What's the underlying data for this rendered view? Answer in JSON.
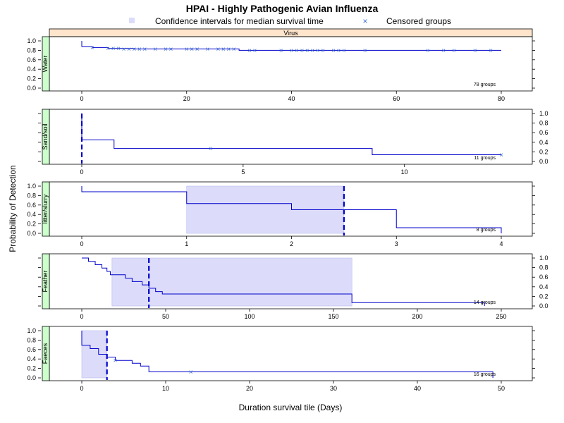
{
  "title": "HPAI - Highly Pathogenic Avian Influenza",
  "legend": {
    "ci_label": "Confidence intervals for median survival time",
    "censored_label": "Censored groups"
  },
  "strip_label": "Virus",
  "ylabel": "Probability of Detection",
  "xlabel": "Duration survival tile (Days)",
  "colors": {
    "line": "#0000cc",
    "marker": "#3a6fd1",
    "ci_fill": "#dcdcfa",
    "strip": "#ffe5cc",
    "panel_strip": "#ccffcc"
  },
  "chart_data": [
    {
      "type": "line",
      "step": true,
      "panel": "Water",
      "groups_label": "78 groups",
      "xlim": [
        0,
        80
      ],
      "xticks": [
        0,
        20,
        40,
        60,
        80
      ],
      "ylim": [
        0,
        1
      ],
      "yticks": [
        "0.0",
        "0.2",
        "0.4",
        "0.6",
        "0.8",
        "1.0"
      ],
      "x": [
        0,
        0,
        2,
        5,
        10,
        30,
        80
      ],
      "y": [
        1,
        0.88,
        0.86,
        0.84,
        0.83,
        0.8,
        0.8
      ],
      "censored": [
        [
          2,
          0.86
        ],
        [
          5,
          0.84
        ],
        [
          6,
          0.84
        ],
        [
          7,
          0.84
        ],
        [
          8,
          0.83
        ],
        [
          9,
          0.83
        ],
        [
          10,
          0.83
        ],
        [
          11,
          0.83
        ],
        [
          12,
          0.83
        ],
        [
          14,
          0.83
        ],
        [
          16,
          0.83
        ],
        [
          17,
          0.83
        ],
        [
          20,
          0.83
        ],
        [
          21,
          0.83
        ],
        [
          22,
          0.83
        ],
        [
          24,
          0.83
        ],
        [
          26,
          0.83
        ],
        [
          27,
          0.83
        ],
        [
          28,
          0.83
        ],
        [
          29,
          0.83
        ],
        [
          32,
          0.8
        ],
        [
          33,
          0.8
        ],
        [
          38,
          0.8
        ],
        [
          40,
          0.8
        ],
        [
          41,
          0.8
        ],
        [
          42,
          0.8
        ],
        [
          43,
          0.8
        ],
        [
          44,
          0.8
        ],
        [
          45,
          0.8
        ],
        [
          46,
          0.8
        ],
        [
          48,
          0.8
        ],
        [
          49,
          0.8
        ],
        [
          50,
          0.8
        ],
        [
          54,
          0.8
        ],
        [
          66,
          0.8
        ],
        [
          69,
          0.8
        ],
        [
          71,
          0.8
        ],
        [
          75,
          0.8
        ],
        [
          78,
          0.8
        ]
      ],
      "median": null,
      "ci": null,
      "x_axis_side": "bottom",
      "y_axis_side": "left"
    },
    {
      "type": "line",
      "step": true,
      "panel": "Sand/soil",
      "groups_label": "11 groups",
      "xlim": [
        0,
        13
      ],
      "xticks": [
        0,
        5,
        10
      ],
      "ylim": [
        0,
        1
      ],
      "yticks": [
        "0.0",
        "0.2",
        "0.4",
        "0.6",
        "0.8",
        "1.0"
      ],
      "x": [
        0,
        0,
        1,
        9,
        13
      ],
      "y": [
        1,
        0.45,
        0.27,
        0.14,
        0.14
      ],
      "censored": [
        [
          4,
          0.27
        ],
        [
          13,
          0.14
        ]
      ],
      "median": 0,
      "ci": null,
      "x_axis_side": "bottom",
      "y_axis_side": "right"
    },
    {
      "type": "line",
      "step": true,
      "panel": "litter/slurry",
      "groups_label": "8 groups",
      "xlim": [
        0,
        4
      ],
      "xticks": [
        0,
        1,
        2,
        3,
        4
      ],
      "ylim": [
        0,
        1
      ],
      "yticks": [
        "0.0",
        "0.2",
        "0.4",
        "0.6",
        "0.8",
        "1.0"
      ],
      "x": [
        0,
        0,
        1,
        2,
        3,
        4,
        4
      ],
      "y": [
        1,
        0.88,
        0.63,
        0.5,
        0.12,
        0.12,
        0
      ],
      "censored": [],
      "median": 2.5,
      "ci": [
        1,
        2.5
      ],
      "x_axis_side": "bottom",
      "y_axis_side": "left"
    },
    {
      "type": "line",
      "step": true,
      "panel": "Feather",
      "groups_label": "14 groups",
      "xlim": [
        0,
        250
      ],
      "xticks": [
        0,
        50,
        100,
        150,
        200,
        250
      ],
      "ylim": [
        0,
        1
      ],
      "yticks": [
        "0.0",
        "0.2",
        "0.4",
        "0.6",
        "0.8",
        "1.0"
      ],
      "x": [
        0,
        4,
        8,
        12,
        15,
        17,
        18,
        26,
        30,
        36,
        40,
        44,
        48,
        73,
        161,
        240,
        240
      ],
      "y": [
        1,
        0.93,
        0.86,
        0.79,
        0.72,
        0.65,
        0.65,
        0.58,
        0.51,
        0.44,
        0.37,
        0.3,
        0.25,
        0.25,
        0.07,
        0.07,
        0
      ],
      "censored": [],
      "median": 40,
      "ci": [
        18,
        161
      ],
      "x_axis_side": "bottom",
      "y_axis_side": "right"
    },
    {
      "type": "line",
      "step": true,
      "panel": "Faeces",
      "groups_label": "16 groups",
      "xlim": [
        0,
        50
      ],
      "xticks": [
        0,
        10,
        20,
        30,
        40,
        50
      ],
      "ylim": [
        0,
        1
      ],
      "yticks": [
        "0.0",
        "0.2",
        "0.4",
        "0.6",
        "0.8",
        "1.0"
      ],
      "x": [
        0,
        0,
        1,
        2,
        3,
        4,
        6,
        7,
        8,
        49,
        49
      ],
      "y": [
        1,
        0.69,
        0.62,
        0.5,
        0.44,
        0.37,
        0.31,
        0.25,
        0.13,
        0.13,
        0
      ],
      "censored": [
        [
          4,
          0.37
        ],
        [
          13,
          0.13
        ]
      ],
      "median": 3,
      "ci": [
        0,
        3
      ],
      "x_axis_side": "bottom",
      "y_axis_side": "left"
    }
  ]
}
